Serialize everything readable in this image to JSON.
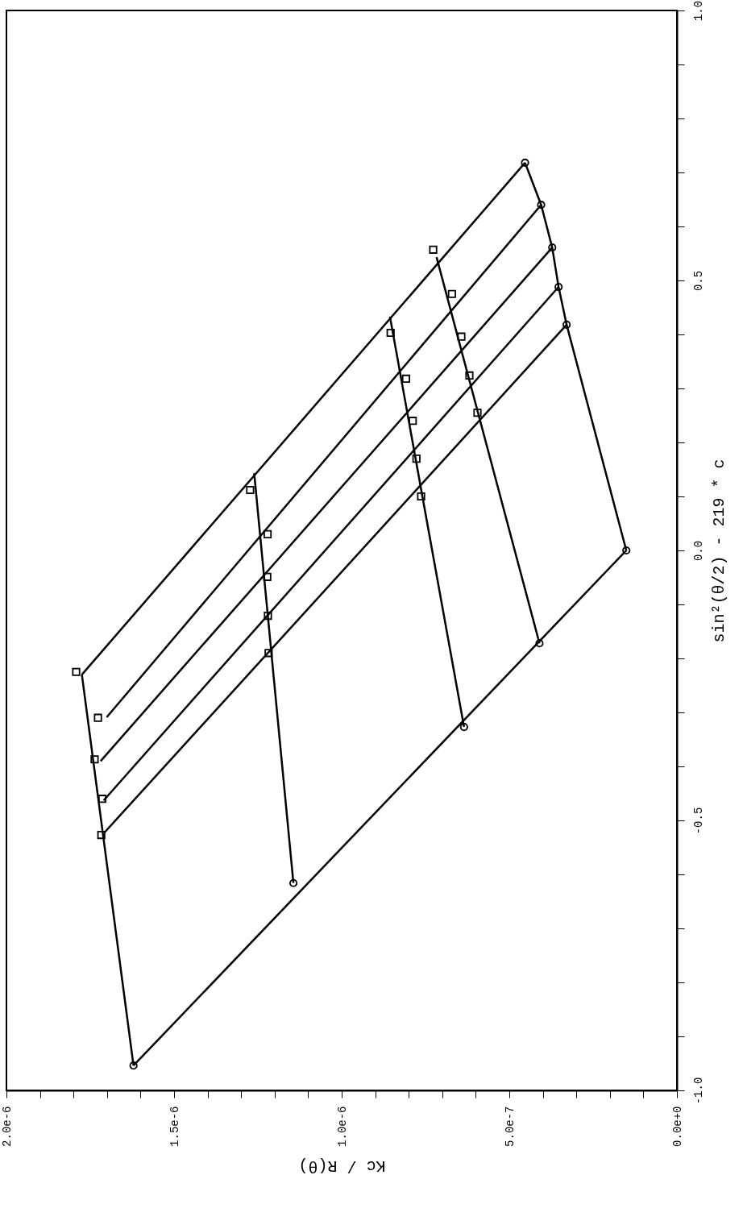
{
  "chart_data": {
    "type": "line",
    "xlabel": "Kc / R(θ)",
    "ylabel": "sin²(θ/2) - 219 * c",
    "xlim": [
      2e-06,
      0.0
    ],
    "ylim": [
      -1.0,
      1.0
    ],
    "xticks": [
      {
        "value": 0.0,
        "label": "0.0e+0"
      },
      {
        "value": 1e-07,
        "label": null
      },
      {
        "value": 2e-07,
        "label": null
      },
      {
        "value": 3e-07,
        "label": null
      },
      {
        "value": 4e-07,
        "label": null
      },
      {
        "value": 5e-07,
        "label": "5.0e-7"
      },
      {
        "value": 6e-07,
        "label": null
      },
      {
        "value": 7e-07,
        "label": null
      },
      {
        "value": 8e-07,
        "label": null
      },
      {
        "value": 9e-07,
        "label": null
      },
      {
        "value": 1e-06,
        "label": "1.0e-6"
      },
      {
        "value": 1.1e-06,
        "label": null
      },
      {
        "value": 1.2e-06,
        "label": null
      },
      {
        "value": 1.3e-06,
        "label": null
      },
      {
        "value": 1.4e-06,
        "label": null
      },
      {
        "value": 1.5e-06,
        "label": "1.5e-6"
      },
      {
        "value": 1.6e-06,
        "label": null
      },
      {
        "value": 1.7e-06,
        "label": null
      },
      {
        "value": 1.8e-06,
        "label": null
      },
      {
        "value": 1.9e-06,
        "label": null
      },
      {
        "value": 2e-06,
        "label": "2.0e-6"
      }
    ],
    "yticks": [
      {
        "value": -1.0,
        "label": "-1.0"
      },
      {
        "value": -0.9,
        "label": null
      },
      {
        "value": -0.8,
        "label": null
      },
      {
        "value": -0.7,
        "label": null
      },
      {
        "value": -0.6,
        "label": null
      },
      {
        "value": -0.5,
        "label": "-0.5"
      },
      {
        "value": -0.4,
        "label": null
      },
      {
        "value": -0.3,
        "label": null
      },
      {
        "value": -0.2,
        "label": null
      },
      {
        "value": -0.1,
        "label": null
      },
      {
        "value": 0.0,
        "label": "0.0"
      },
      {
        "value": 0.1,
        "label": null
      },
      {
        "value": 0.2,
        "label": null
      },
      {
        "value": 0.3,
        "label": null
      },
      {
        "value": 0.4,
        "label": null
      },
      {
        "value": 0.5,
        "label": "0.5"
      },
      {
        "value": 0.6,
        "label": null
      },
      {
        "value": 0.7,
        "label": null
      },
      {
        "value": 0.8,
        "label": null
      },
      {
        "value": 0.9,
        "label": null
      },
      {
        "value": 1.0,
        "label": "1.0"
      }
    ],
    "grid": false,
    "series": [
      {
        "marker": "none",
        "color": "#000000",
        "x": [
          1.775e-06,
          4.53e-07
        ],
        "values": [
          -0.23,
          0.718
        ]
      },
      {
        "marker": "none",
        "color": "#000000",
        "x": [
          1.701e-06,
          4.05e-07
        ],
        "values": [
          -0.309,
          0.64
        ]
      },
      {
        "marker": "none",
        "color": "#000000",
        "x": [
          1.719e-06,
          3.72e-07
        ],
        "values": [
          -0.39,
          0.561
        ]
      },
      {
        "marker": "none",
        "color": "#000000",
        "x": [
          1.71e-06,
          3.53e-07
        ],
        "values": [
          -0.463,
          0.488
        ]
      },
      {
        "marker": "none",
        "color": "#000000",
        "x": [
          1.707e-06,
          3.29e-07
        ],
        "values": [
          -0.522,
          0.418
        ]
      },
      {
        "marker": "none",
        "color": "#000000",
        "x": [
          1.621e-06,
          1.51e-07
        ],
        "values": [
          -0.954,
          0.0
        ]
      },
      {
        "marker": "none",
        "color": "#000000",
        "x": [
          1.775e-06,
          1.621e-06
        ],
        "values": [
          -0.23,
          -0.954
        ]
      },
      {
        "marker": "none",
        "color": "#000000",
        "x": [
          1.261e-06,
          1.144e-06
        ],
        "values": [
          0.143,
          -0.616
        ]
      },
      {
        "marker": "none",
        "color": "#000000",
        "x": [
          8.56e-07,
          6.35e-07
        ],
        "values": [
          0.433,
          -0.327
        ]
      },
      {
        "marker": "none",
        "color": "#000000",
        "x": [
          7.17e-07,
          4.1e-07
        ],
        "values": [
          0.543,
          -0.172
        ]
      },
      {
        "marker": "none",
        "color": "#000000",
        "x": [
          4.53e-07,
          4.05e-07,
          3.72e-07,
          3.53e-07,
          3.29e-07,
          1.51e-07
        ],
        "values": [
          0.718,
          0.64,
          0.561,
          0.488,
          0.418,
          0.0
        ]
      },
      {
        "type": "scatter",
        "marker": "square",
        "color": "#000000",
        "x": [
          1.792e-06,
          1.727e-06,
          1.737e-06,
          1.714e-06,
          1.717e-06,
          1.273e-06,
          1.221e-06,
          1.222e-06,
          1.22e-06,
          1.218e-06,
          8.54e-07,
          8.08e-07,
          7.88e-07,
          7.77e-07,
          7.63e-07,
          7.27e-07,
          6.71e-07,
          6.43e-07,
          6.19e-07,
          5.95e-07
        ],
        "values": [
          -0.225,
          -0.31,
          -0.387,
          -0.46,
          -0.527,
          0.112,
          0.03,
          -0.049,
          -0.121,
          -0.19,
          0.403,
          0.318,
          0.24,
          0.17,
          0.1,
          0.557,
          0.475,
          0.396,
          0.324,
          0.255
        ]
      },
      {
        "type": "scatter",
        "marker": "circle",
        "color": "#000000",
        "x": [
          1.621e-06,
          1.144e-06,
          6.35e-07,
          4.1e-07,
          1.51e-07,
          4.53e-07,
          4.05e-07,
          3.72e-07,
          3.53e-07,
          3.29e-07
        ],
        "values": [
          -0.954,
          -0.616,
          -0.327,
          -0.172,
          0.0,
          0.718,
          0.64,
          0.561,
          0.488,
          0.418
        ]
      }
    ]
  }
}
